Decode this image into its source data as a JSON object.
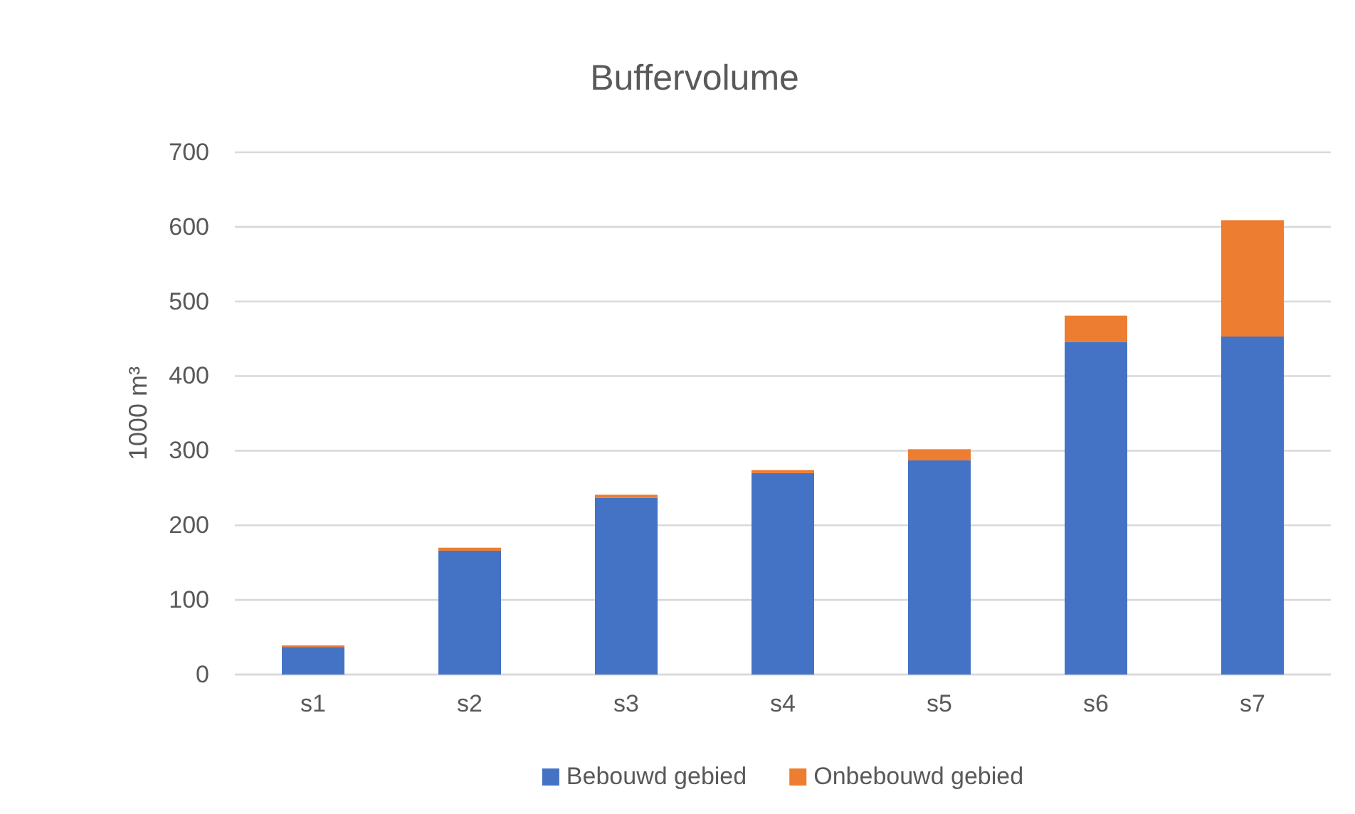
{
  "chart_data": {
    "type": "bar",
    "title": "Buffervolume",
    "ylabel": "1000 m³",
    "categories": [
      "s1",
      "s2",
      "s3",
      "s4",
      "s5",
      "s6",
      "s7"
    ],
    "stacked": true,
    "series": [
      {
        "name": "Bebouwd gebied",
        "color": "#4472c4",
        "values": [
          37,
          166,
          237,
          270,
          287,
          446,
          453
        ]
      },
      {
        "name": "Onbebouwd gebied",
        "color": "#ed7d31",
        "values": [
          2,
          4,
          4,
          4,
          15,
          35,
          156
        ]
      }
    ],
    "ylim": [
      0,
      700
    ],
    "yticks": [
      0,
      100,
      200,
      300,
      400,
      500,
      600,
      700
    ],
    "grid": "y",
    "legend": "bottom"
  }
}
